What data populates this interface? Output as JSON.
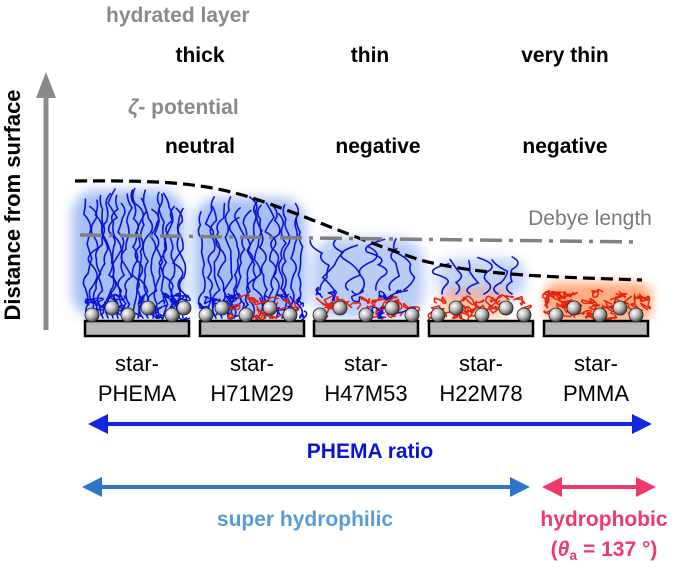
{
  "headers": {
    "hydrated_layer": "hydrated layer",
    "zeta_symbol": "ζ",
    "zeta_rest": "- potential"
  },
  "hydration_levels": [
    "thick",
    "thin",
    "very thin"
  ],
  "potential_levels": [
    "neutral",
    "negative",
    "negative"
  ],
  "axis_label": "Distance from surface",
  "debye_label": "Debye length",
  "samples": [
    {
      "line1": "star-",
      "line2": "PHEMA"
    },
    {
      "line1": "star-",
      "line2": "H71M29"
    },
    {
      "line1": "star-",
      "line2": "H47M53"
    },
    {
      "line1": "star-",
      "line2": "H22M78"
    },
    {
      "line1": "star-",
      "line2": "PMMA"
    }
  ],
  "ratio_label": "PHEMA ratio",
  "hydrophilic_label": "super hydrophilic",
  "hydrophobic_label": "hydrophobic",
  "contact_angle": {
    "open": "(",
    "symbol": "θ",
    "subscript": "a",
    "value": " = 137 °)"
  },
  "colors": {
    "hydrophilic_chain": "#0b14d6",
    "hydrophobic_chain": "#e8220c",
    "ratio_arrow": "#1226e0",
    "hydrophilic_arrow": "#2e75c8",
    "hydrophobic_arrow": "#ec3b6b",
    "header_gray": "#8a8a8a"
  }
}
